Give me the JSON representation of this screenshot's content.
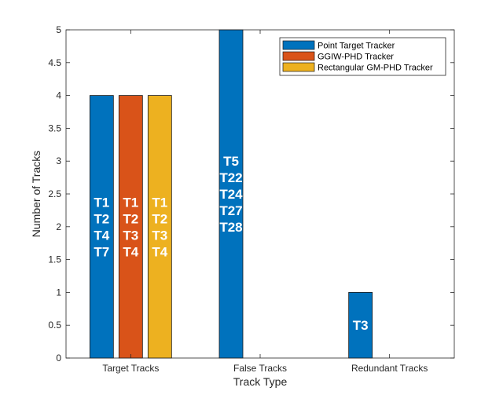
{
  "chart_data": {
    "type": "bar",
    "categories": [
      "Target Tracks",
      "False Tracks",
      "Redundant Tracks"
    ],
    "series": [
      {
        "name": "Point Target Tracker",
        "color": "#0072BD",
        "values": [
          4,
          5,
          1
        ],
        "labels": [
          [
            "T1",
            "T2",
            "T4",
            "T7"
          ],
          [
            "T5",
            "T22",
            "T24",
            "T27",
            "T28"
          ],
          [
            "T3"
          ]
        ]
      },
      {
        "name": "GGIW-PHD Tracker",
        "color": "#D95319",
        "values": [
          4,
          0,
          0
        ],
        "labels": [
          [
            "T1",
            "T2",
            "T3",
            "T4"
          ],
          [],
          []
        ]
      },
      {
        "name": "Rectangular GM-PHD Tracker",
        "color": "#EDB120",
        "values": [
          4,
          0,
          0
        ],
        "labels": [
          [
            "T1",
            "T2",
            "T3",
            "T4"
          ],
          [],
          []
        ]
      }
    ],
    "xlabel": "Track Type",
    "ylabel": "Number of Tracks",
    "ylim": [
      0,
      5
    ],
    "yticks": [
      "0",
      "0.5",
      "1",
      "1.5",
      "2",
      "2.5",
      "3",
      "3.5",
      "4",
      "4.5",
      "5"
    ],
    "grid": false,
    "legend_position": "top-right"
  }
}
